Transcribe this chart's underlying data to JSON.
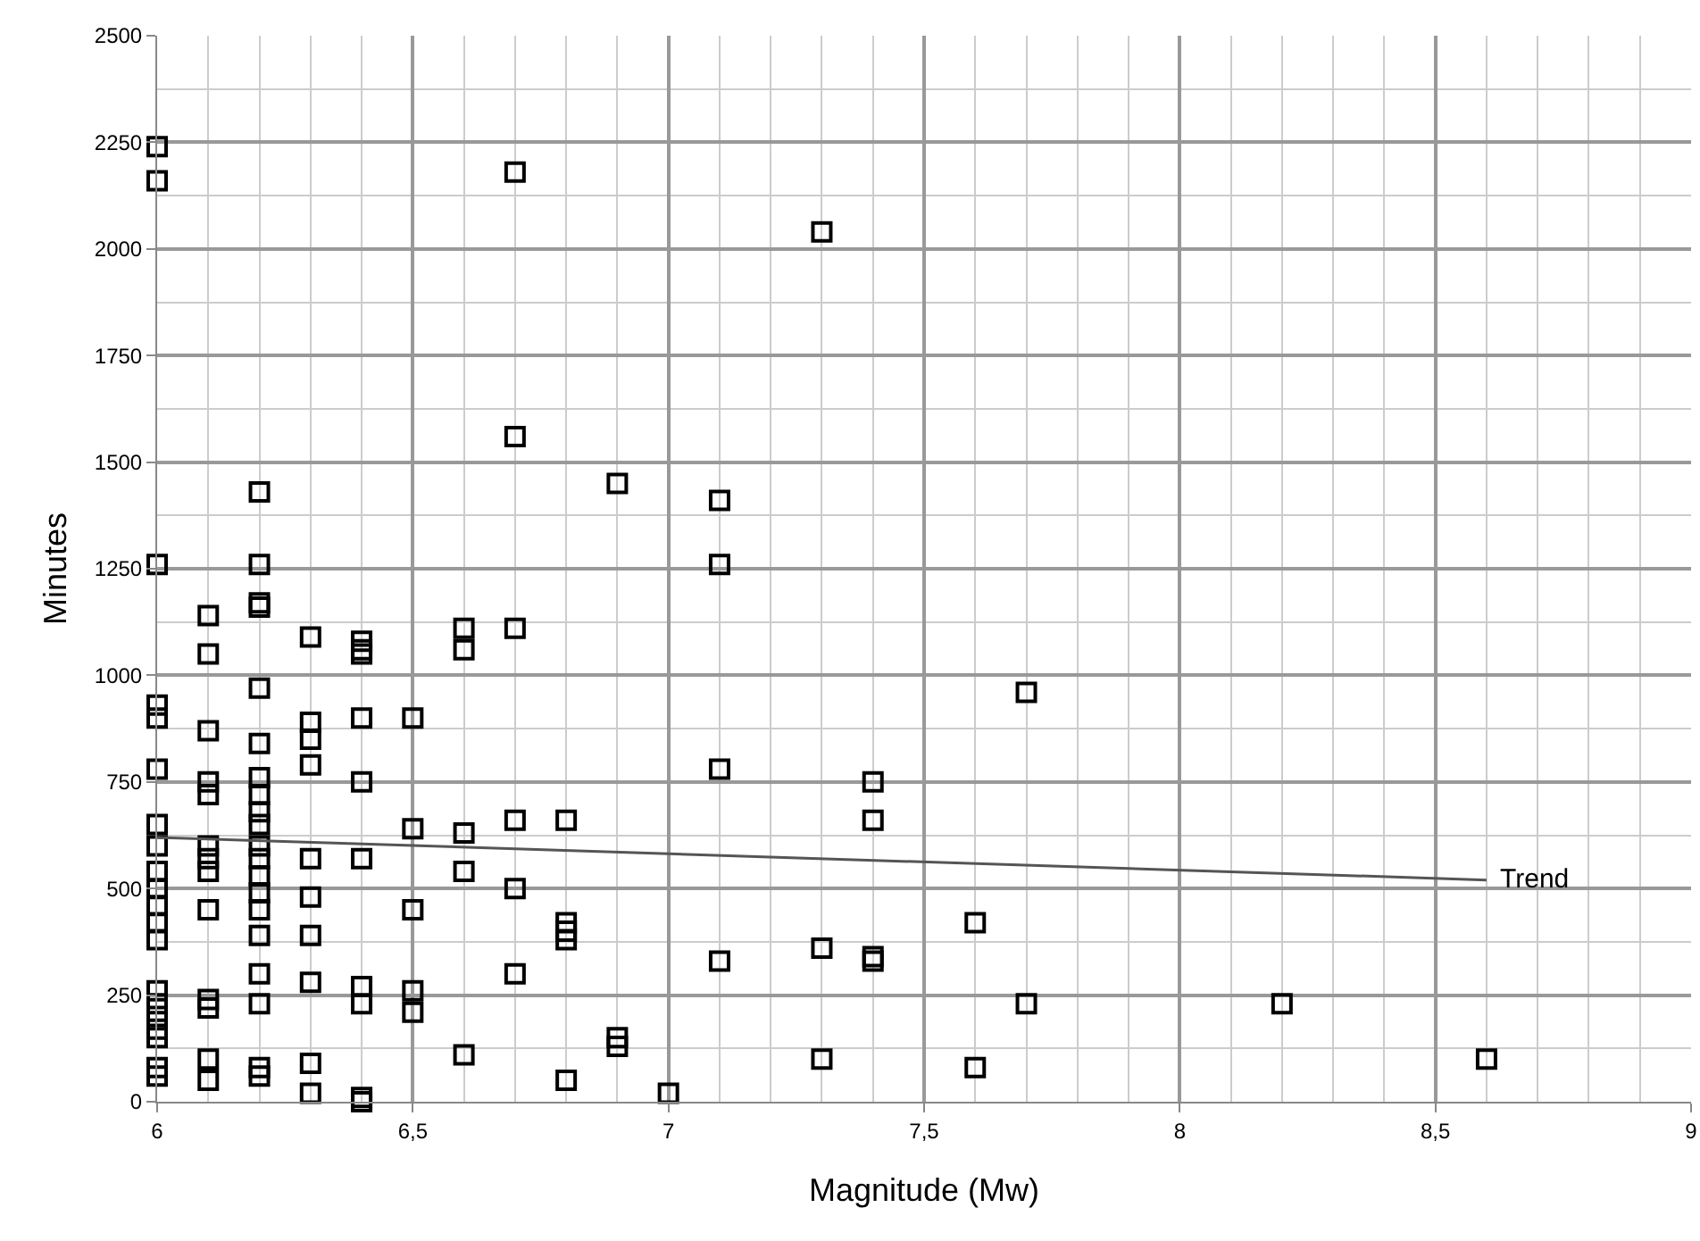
{
  "chart_data": {
    "type": "scatter",
    "xlabel": "Magnitude (Mw)",
    "ylabel": "Minutes",
    "marker": "square",
    "grid": true,
    "legend": false,
    "xlim": [
      6,
      9
    ],
    "xticks": [
      6,
      {
        "value": 6.5,
        "label": "6,5"
      },
      7,
      {
        "value": 7.5,
        "label": "7,5"
      },
      8,
      {
        "value": 8.5,
        "label": "8,5"
      },
      9
    ],
    "ylim": [
      0,
      2500
    ],
    "yticks": [
      0,
      250,
      500,
      750,
      1000,
      1250,
      1500,
      1750,
      2000,
      2250,
      2500
    ],
    "series": [
      {
        "color": "#000000",
        "x": [
          6,
          6,
          6,
          6,
          6,
          6,
          6,
          6,
          6,
          6,
          6,
          6,
          6,
          6,
          6,
          6,
          6,
          6,
          6,
          6,
          6.1,
          6.1,
          6.1,
          6.1,
          6.1,
          6.1,
          6.1,
          6.1,
          6.1,
          6.1,
          6.1,
          6.1,
          6.1,
          6.2,
          6.2,
          6.2,
          6.2,
          6.2,
          6.2,
          6.2,
          6.2,
          6.2,
          6.2,
          6.2,
          6.2,
          6.2,
          6.2,
          6.2,
          6.2,
          6.2,
          6.2,
          6.2,
          6.2,
          6.3,
          6.3,
          6.3,
          6.3,
          6.3,
          6.3,
          6.3,
          6.3,
          6.3,
          6.3,
          6.4,
          6.4,
          6.4,
          6.4,
          6.4,
          6.4,
          6.4,
          6.4,
          6.4,
          6.4,
          6.5,
          6.5,
          6.5,
          6.5,
          6.5,
          6.6,
          6.6,
          6.6,
          6.6,
          6.6,
          6.7,
          6.7,
          6.7,
          6.7,
          6.7,
          6.7,
          6.8,
          6.8,
          6.8,
          6.8,
          6.8,
          6.9,
          6.9,
          6.9,
          7,
          7.1,
          7.1,
          7.1,
          7.1,
          7.3,
          7.3,
          7.3,
          7.4,
          7.4,
          7.4,
          7.4,
          7.6,
          7.6,
          7.7,
          7.7,
          8.2,
          8.6
        ],
        "values": [
          2240,
          2160,
          1260,
          930,
          900,
          780,
          650,
          600,
          540,
          500,
          460,
          420,
          380,
          260,
          230,
          200,
          170,
          150,
          80,
          60,
          1140,
          1050,
          870,
          750,
          720,
          600,
          570,
          540,
          450,
          240,
          220,
          100,
          50,
          1430,
          1260,
          1170,
          1160,
          970,
          840,
          760,
          720,
          680,
          650,
          600,
          570,
          530,
          490,
          450,
          390,
          300,
          230,
          80,
          60,
          1090,
          890,
          850,
          790,
          570,
          480,
          390,
          280,
          90,
          20,
          1080,
          1060,
          1050,
          900,
          750,
          570,
          270,
          230,
          10,
          0,
          900,
          640,
          450,
          260,
          210,
          1110,
          1060,
          630,
          540,
          110,
          2180,
          1560,
          1110,
          660,
          500,
          300,
          660,
          420,
          400,
          380,
          50,
          1450,
          150,
          130,
          20,
          1410,
          1260,
          780,
          330,
          2040,
          360,
          100,
          750,
          660,
          340,
          330,
          420,
          80,
          960,
          230,
          230,
          100
        ]
      },
      {
        "type": "line",
        "name": "Trend",
        "color": "#555555",
        "x": [
          6,
          8.6
        ],
        "values": [
          620,
          520
        ],
        "marker": "none"
      }
    ]
  }
}
